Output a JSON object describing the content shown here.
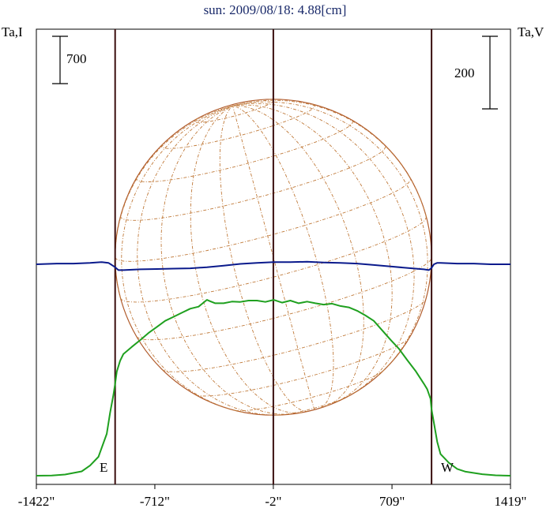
{
  "title": "sun: 2009/08/18: 4.88[cm]",
  "left_axis_label": "Ta,I",
  "right_axis_label": "Ta,V",
  "left_scale_value": "700",
  "right_scale_value": "200",
  "east_label": "E",
  "west_label": "W",
  "colors": {
    "title": "#1a2a6a",
    "intensity": "#1fa01f",
    "polarization": "#0a1a8c",
    "limb": "#b05a2a",
    "grid": "#c07a3a",
    "vertical_lines": "#3a0e0e"
  },
  "chart_data": {
    "type": "line",
    "xlabel": "",
    "ylabel": "Ta,I",
    "y2label": "Ta,V",
    "x_ticks": [
      "-1422\"",
      "-712\"",
      "-2\"",
      "709\"",
      "1419\""
    ],
    "x_tick_values": [
      -1422,
      -712,
      -2,
      709,
      1419
    ],
    "xlim": [
      -1422,
      1419
    ],
    "vertical_marker_values": [
      -950,
      -2,
      946
    ],
    "y_scale_bar_I": 700,
    "y_scale_bar_V": 200,
    "series": [
      {
        "name": "Ta,I",
        "axis": "left",
        "x": [
          -1422,
          -1330,
          -1250,
          -1150,
          -1100,
          -1050,
          -1000,
          -980,
          -960,
          -950,
          -940,
          -920,
          -900,
          -850,
          -800,
          -750,
          -700,
          -650,
          -600,
          -550,
          -500,
          -450,
          -400,
          -380,
          -350,
          -300,
          -250,
          -200,
          -150,
          -100,
          -50,
          0,
          50,
          100,
          150,
          200,
          250,
          300,
          350,
          400,
          450,
          500,
          550,
          600,
          650,
          700,
          750,
          800,
          850,
          900,
          920,
          940,
          946,
          960,
          980,
          1000,
          1050,
          1100,
          1150,
          1250,
          1330,
          1419
        ],
        "values": [
          0,
          4,
          18,
          64,
          150,
          280,
          620,
          930,
          1200,
          1360,
          1540,
          1700,
          1800,
          1905,
          2005,
          2110,
          2200,
          2290,
          2350,
          2410,
          2470,
          2500,
          2600,
          2580,
          2550,
          2550,
          2575,
          2570,
          2590,
          2590,
          2570,
          2600,
          2560,
          2590,
          2550,
          2575,
          2550,
          2530,
          2545,
          2510,
          2490,
          2440,
          2370,
          2290,
          2150,
          2010,
          1880,
          1710,
          1550,
          1360,
          1280,
          1140,
          980,
          780,
          500,
          320,
          190,
          100,
          60,
          22,
          6,
          0
        ]
      },
      {
        "name": "Ta,V",
        "axis": "right",
        "x": [
          -1422,
          -1300,
          -1200,
          -1100,
          -1030,
          -990,
          -970,
          -950,
          -930,
          -900,
          -850,
          -800,
          -700,
          -600,
          -500,
          -400,
          -300,
          -200,
          -100,
          0,
          100,
          200,
          300,
          400,
          500,
          600,
          700,
          800,
          850,
          900,
          930,
          946,
          960,
          980,
          1000,
          1100,
          1200,
          1300,
          1419
        ],
        "values": [
          0,
          2,
          2,
          4,
          6,
          4,
          -2,
          -8,
          -16,
          -16,
          -15,
          -14,
          -13,
          -12,
          -11,
          -8,
          -4,
          1,
          4,
          6,
          6,
          7,
          5,
          4,
          2,
          -2,
          -6,
          -10,
          -12,
          -14,
          -16,
          -10,
          0,
          4,
          4,
          2,
          2,
          0,
          0
        ]
      }
    ],
    "limb_circle": {
      "center_x": -2,
      "radius": 948
    }
  }
}
